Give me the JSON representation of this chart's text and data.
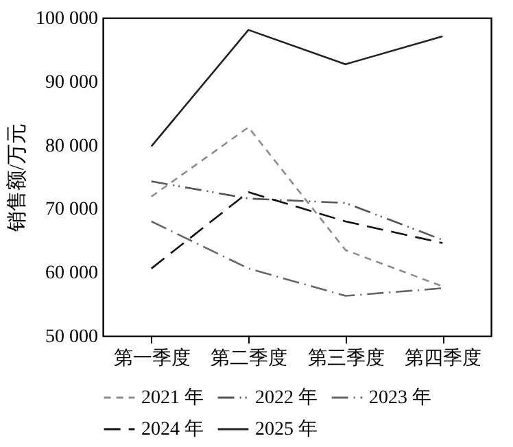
{
  "chart_data": {
    "type": "line",
    "ylabel": "销售额/万元",
    "categories": [
      "第一季度",
      "第二季度",
      "第三季度",
      "第四季度"
    ],
    "ylim": [
      50000,
      100000
    ],
    "yticks": [
      {
        "value": 50000,
        "label": "50 000"
      },
      {
        "value": 60000,
        "label": "60 000"
      },
      {
        "value": 70000,
        "label": "70 000"
      },
      {
        "value": 80000,
        "label": "80 000"
      },
      {
        "value": 90000,
        "label": "90 000"
      },
      {
        "value": 100000,
        "label": "100 000"
      }
    ],
    "grid": false,
    "legend": "bottom",
    "marker": "none",
    "series": [
      {
        "name": "2021 年",
        "color": "#8c8c8c",
        "line_style": "dashed",
        "values": [
          71900,
          82800,
          63500,
          57800
        ]
      },
      {
        "name": "2022 年",
        "color": "#555555",
        "line_style": "dashdotdot",
        "values": [
          74300,
          71600,
          70900,
          65100
        ]
      },
      {
        "name": "2023 年",
        "color": "#666666",
        "line_style": "dashdot",
        "values": [
          68000,
          60600,
          56300,
          57500
        ]
      },
      {
        "name": "2024 年",
        "color": "#111111",
        "line_style": "longdash",
        "values": [
          60600,
          72600,
          68000,
          64600
        ]
      },
      {
        "name": "2025 年",
        "color": "#222222",
        "line_style": "solid",
        "values": [
          79800,
          98100,
          92700,
          97100
        ]
      }
    ]
  }
}
